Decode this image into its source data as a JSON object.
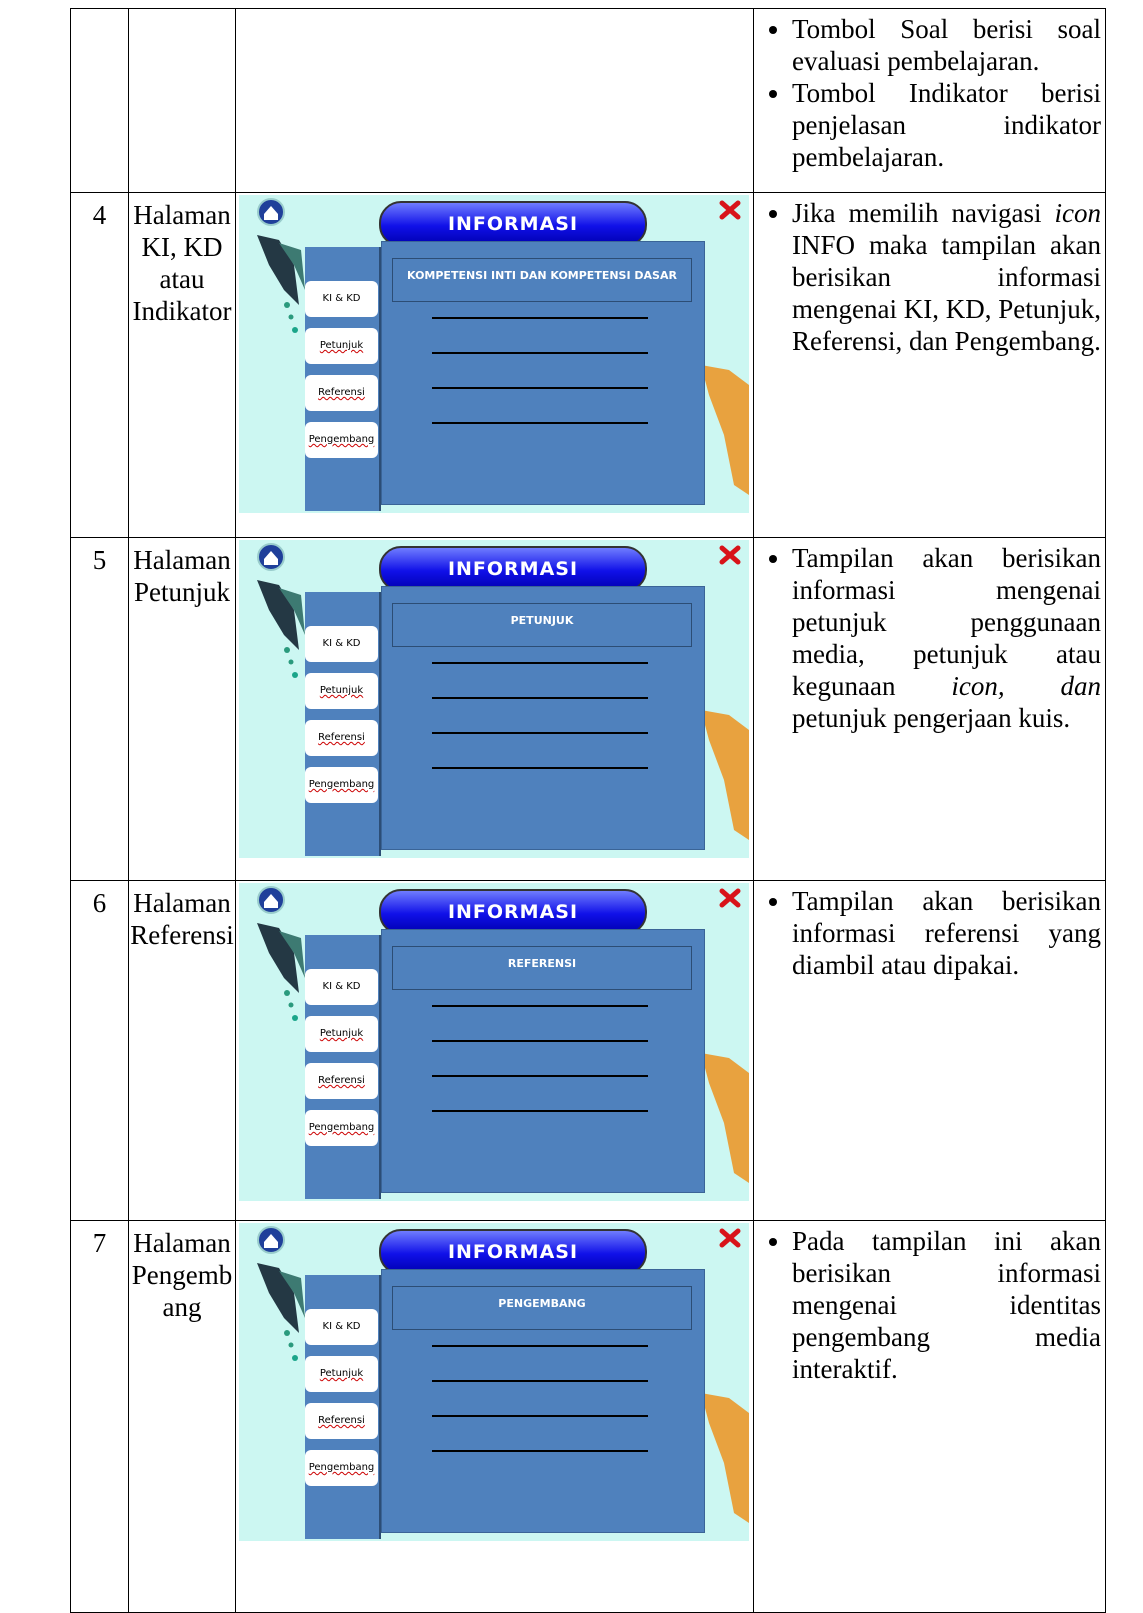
{
  "table": {
    "rows": [
      {
        "description": [
          [
            {
              "text": "Tombol Soal berisi soal evaluasi pembelajaran."
            }
          ],
          [
            {
              "text": "Tombol Indikator berisi penjelasan indikator pembelajaran."
            }
          ]
        ]
      },
      {
        "no": "4",
        "title": "Halaman KI, KD atau Indikator",
        "screen": {
          "header": "INFORMASI",
          "heading": "KOMPETENSI INTI DAN KOMPETENSI DASAR",
          "menu": [
            "KI & KD",
            "Petunjuk",
            "Referensi",
            "Pengembang"
          ]
        },
        "description": [
          [
            {
              "text": "Jika memilih navigasi "
            },
            {
              "text": "icon",
              "italic": true
            },
            {
              "text": " INFO maka tampilan akan berisikan informasi mengenai KI, KD, Petunjuk, Referensi, dan Pengembang."
            }
          ]
        ]
      },
      {
        "no": "5",
        "title": "Halaman Petunjuk",
        "screen": {
          "header": "INFORMASI",
          "heading": "PETUNJUK",
          "menu": [
            "KI & KD",
            "Petunjuk",
            "Referensi",
            "Pengembang"
          ]
        },
        "description": [
          [
            {
              "text": "Tampilan akan berisikan informasi mengenai petunjuk penggunaan media, petunjuk atau kegunaan "
            },
            {
              "text": "icon, dan",
              "italic": true
            },
            {
              "text": " petunjuk pengerjaan kuis."
            }
          ]
        ]
      },
      {
        "no": "6",
        "title": "Halaman Referensi",
        "screen": {
          "header": "INFORMASI",
          "heading": "REFERENSI",
          "menu": [
            "KI & KD",
            "Petunjuk",
            "Referensi",
            "Pengembang"
          ]
        },
        "description": [
          [
            {
              "text": "Tampilan akan berisikan informasi referensi yang diambil atau dipakai."
            }
          ]
        ]
      },
      {
        "no": "7",
        "title": "Halaman Pengembang",
        "screen": {
          "header": "INFORMASI",
          "heading": "PENGEMBANG",
          "menu": [
            "KI & KD",
            "Petunjuk",
            "Referensi",
            "Pengembang"
          ]
        },
        "description": [
          [
            {
              "text": "Pada tampilan ini akan berisikan informasi mengenai identitas pengembang media interaktif."
            }
          ]
        ]
      }
    ]
  }
}
